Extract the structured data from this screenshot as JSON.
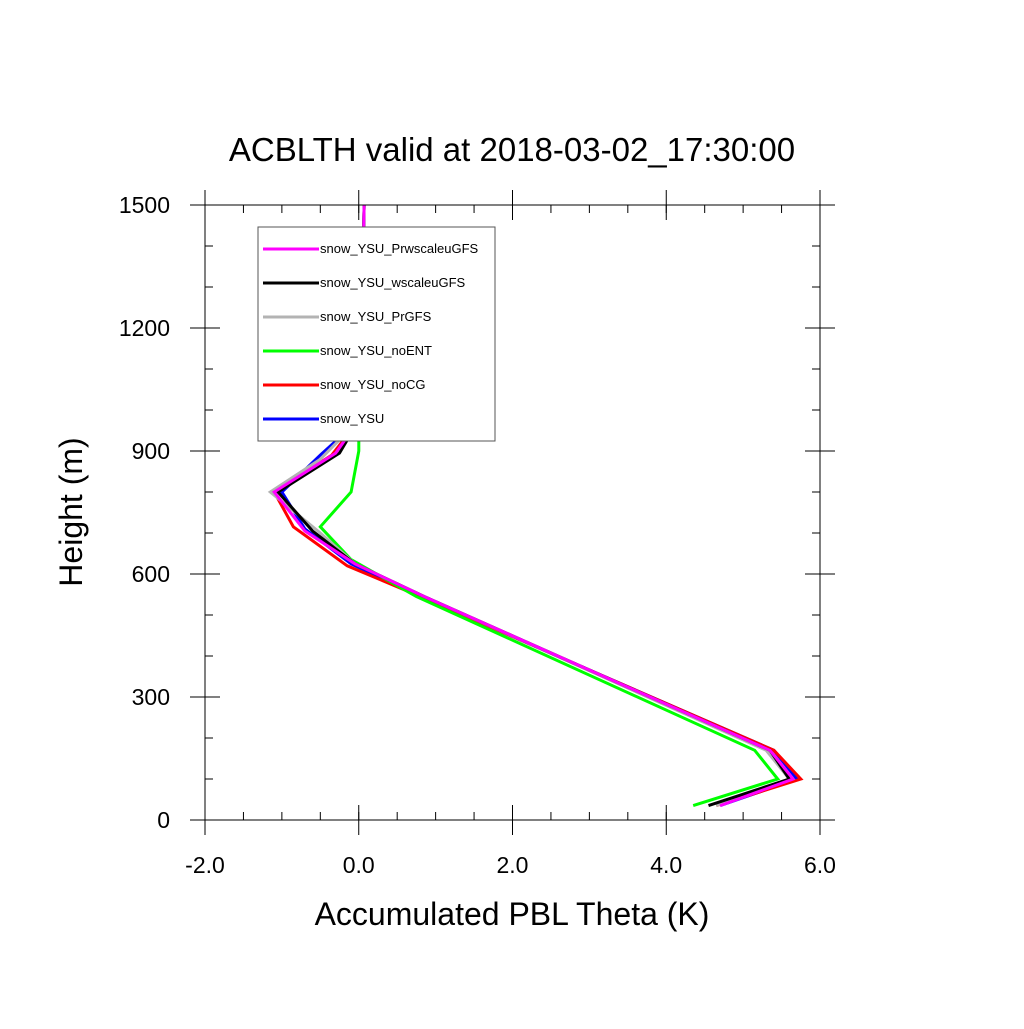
{
  "chart_data": {
    "type": "line",
    "title": "ACBLTH valid at 2018-03-02_17:30:00",
    "xlabel": "Accumulated PBL Theta (K)",
    "ylabel": "Height (m)",
    "xlim": [
      -2.0,
      6.0
    ],
    "ylim": [
      0,
      1500
    ],
    "x_ticks": [
      -2.0,
      0.0,
      2.0,
      4.0,
      6.0
    ],
    "x_tick_labels": [
      "-2.0",
      "0.0",
      "2.0",
      "4.0",
      "6.0"
    ],
    "y_ticks": [
      0,
      300,
      600,
      900,
      1200,
      1500
    ],
    "y_tick_labels": [
      "0",
      "300",
      "600",
      "900",
      "1200",
      "1500"
    ],
    "x_minor_step": 0.5,
    "y_minor_step": 100,
    "grid": false,
    "legend_position": "top-left",
    "series": [
      {
        "name": "snow_YSU",
        "color": "#0000ff",
        "points": [
          [
            4.7,
            35
          ],
          [
            5.7,
            100
          ],
          [
            5.4,
            170
          ],
          [
            0.8,
            545
          ],
          [
            -0.1,
            625
          ],
          [
            -0.7,
            710
          ],
          [
            -1.0,
            800
          ],
          [
            -0.5,
            890
          ],
          [
            0.0,
            975
          ],
          [
            0.0,
            1000
          ],
          [
            0.02,
            1100
          ],
          [
            0.03,
            1200
          ],
          [
            0.05,
            1300
          ],
          [
            0.06,
            1400
          ],
          [
            0.07,
            1500
          ]
        ]
      },
      {
        "name": "snow_YSU_noCG",
        "color": "#ff0000",
        "points": [
          [
            4.65,
            35
          ],
          [
            5.75,
            100
          ],
          [
            5.4,
            170
          ],
          [
            0.8,
            545
          ],
          [
            -0.15,
            620
          ],
          [
            -0.85,
            715
          ],
          [
            -1.1,
            800
          ],
          [
            -0.35,
            890
          ],
          [
            0.0,
            975
          ],
          [
            0.0,
            1000
          ],
          [
            0.02,
            1100
          ],
          [
            0.03,
            1200
          ],
          [
            0.05,
            1300
          ],
          [
            0.06,
            1400
          ],
          [
            0.07,
            1500
          ]
        ]
      },
      {
        "name": "snow_YSU_noENT",
        "color": "#00ff00",
        "points": [
          [
            4.35,
            35
          ],
          [
            5.45,
            100
          ],
          [
            5.15,
            170
          ],
          [
            0.75,
            545
          ],
          [
            -0.1,
            635
          ],
          [
            -0.5,
            715
          ],
          [
            -0.1,
            800
          ],
          [
            0.0,
            900
          ],
          [
            0.0,
            975
          ],
          [
            0.02,
            1100
          ],
          [
            0.03,
            1200
          ],
          [
            0.05,
            1300
          ],
          [
            0.06,
            1400
          ],
          [
            0.07,
            1500
          ]
        ]
      },
      {
        "name": "snow_YSU_PrGFS",
        "color": "#b3b3b3",
        "points": [
          [
            4.65,
            35
          ],
          [
            5.6,
            100
          ],
          [
            5.3,
            170
          ],
          [
            0.85,
            545
          ],
          [
            -0.05,
            625
          ],
          [
            -0.5,
            700
          ],
          [
            -1.15,
            800
          ],
          [
            -0.5,
            880
          ],
          [
            0.0,
            975
          ],
          [
            0.0,
            1000
          ],
          [
            0.02,
            1100
          ],
          [
            0.03,
            1200
          ],
          [
            0.05,
            1300
          ],
          [
            0.06,
            1400
          ],
          [
            0.07,
            1500
          ]
        ]
      },
      {
        "name": "snow_YSU_wscaleuGFS",
        "color": "#000000",
        "points": [
          [
            4.55,
            35
          ],
          [
            5.6,
            100
          ],
          [
            5.35,
            170
          ],
          [
            0.85,
            545
          ],
          [
            -0.05,
            625
          ],
          [
            -0.6,
            705
          ],
          [
            -1.05,
            800
          ],
          [
            -0.25,
            895
          ],
          [
            0.0,
            975
          ],
          [
            0.0,
            1000
          ],
          [
            0.02,
            1100
          ],
          [
            0.03,
            1200
          ],
          [
            0.05,
            1300
          ],
          [
            0.06,
            1400
          ],
          [
            0.07,
            1500
          ]
        ]
      },
      {
        "name": "snow_YSU_PrwscaleuGFS",
        "color": "#ff00ff",
        "points": [
          [
            4.7,
            35
          ],
          [
            5.65,
            100
          ],
          [
            5.35,
            170
          ],
          [
            0.85,
            545
          ],
          [
            -0.05,
            625
          ],
          [
            -0.7,
            705
          ],
          [
            -1.1,
            800
          ],
          [
            -0.3,
            895
          ],
          [
            0.0,
            975
          ],
          [
            0.0,
            1000
          ],
          [
            0.02,
            1100
          ],
          [
            0.03,
            1200
          ],
          [
            0.05,
            1300
          ],
          [
            0.06,
            1400
          ],
          [
            0.07,
            1500
          ]
        ]
      }
    ],
    "legend_order": [
      "snow_YSU_PrwscaleuGFS",
      "snow_YSU_wscaleuGFS",
      "snow_YSU_PrGFS",
      "snow_YSU_noENT",
      "snow_YSU_noCG",
      "snow_YSU"
    ]
  }
}
